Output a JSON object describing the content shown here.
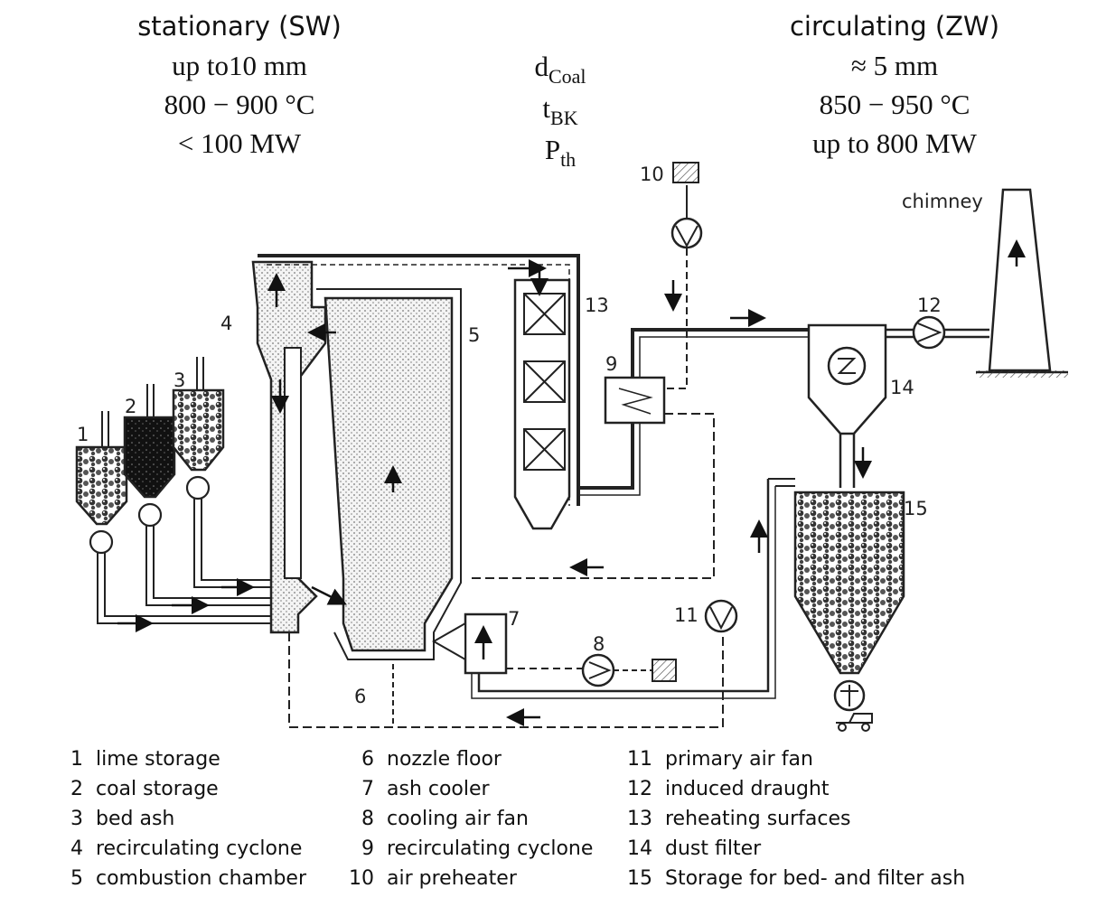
{
  "header": {
    "left": [
      "stationary (SW)",
      "up to10 mm",
      "800 − 900 °C",
      "< 100 MW"
    ],
    "middle": [
      {
        "base": "d",
        "sub": "Coal"
      },
      {
        "base": "t",
        "sub": "BK"
      },
      {
        "base": "P",
        "sub": "th"
      }
    ],
    "right": [
      "circulating (ZW)",
      "≈ 5 mm",
      "850 − 950 °C",
      "up to 800 MW"
    ]
  },
  "diagram": {
    "chimney_label": "chimney",
    "numbers": [
      "1",
      "2",
      "3",
      "4",
      "5",
      "6",
      "7",
      "8",
      "9",
      "10",
      "11",
      "12",
      "13",
      "14",
      "15"
    ]
  },
  "legend": {
    "col1": [
      {
        "num": "1",
        "label": "lime storage"
      },
      {
        "num": "2",
        "label": "coal storage"
      },
      {
        "num": "3",
        "label": "bed ash"
      },
      {
        "num": "4",
        "label": "recirculating cyclone"
      },
      {
        "num": "5",
        "label": "combustion chamber"
      }
    ],
    "col2": [
      {
        "num": "6",
        "label": "nozzle floor"
      },
      {
        "num": "7",
        "label": "ash cooler"
      },
      {
        "num": "8",
        "label": "cooling air fan"
      },
      {
        "num": "9",
        "label": "recirculating cyclone"
      },
      {
        "num": "10",
        "label": "air preheater"
      }
    ],
    "col3": [
      {
        "num": "11",
        "label": "primary air fan"
      },
      {
        "num": "12",
        "label": "induced draught"
      },
      {
        "num": "13",
        "label": "reheating surfaces"
      },
      {
        "num": "14",
        "label": "dust filter"
      },
      {
        "num": "15",
        "label": "Storage for bed- and filter ash"
      }
    ]
  }
}
